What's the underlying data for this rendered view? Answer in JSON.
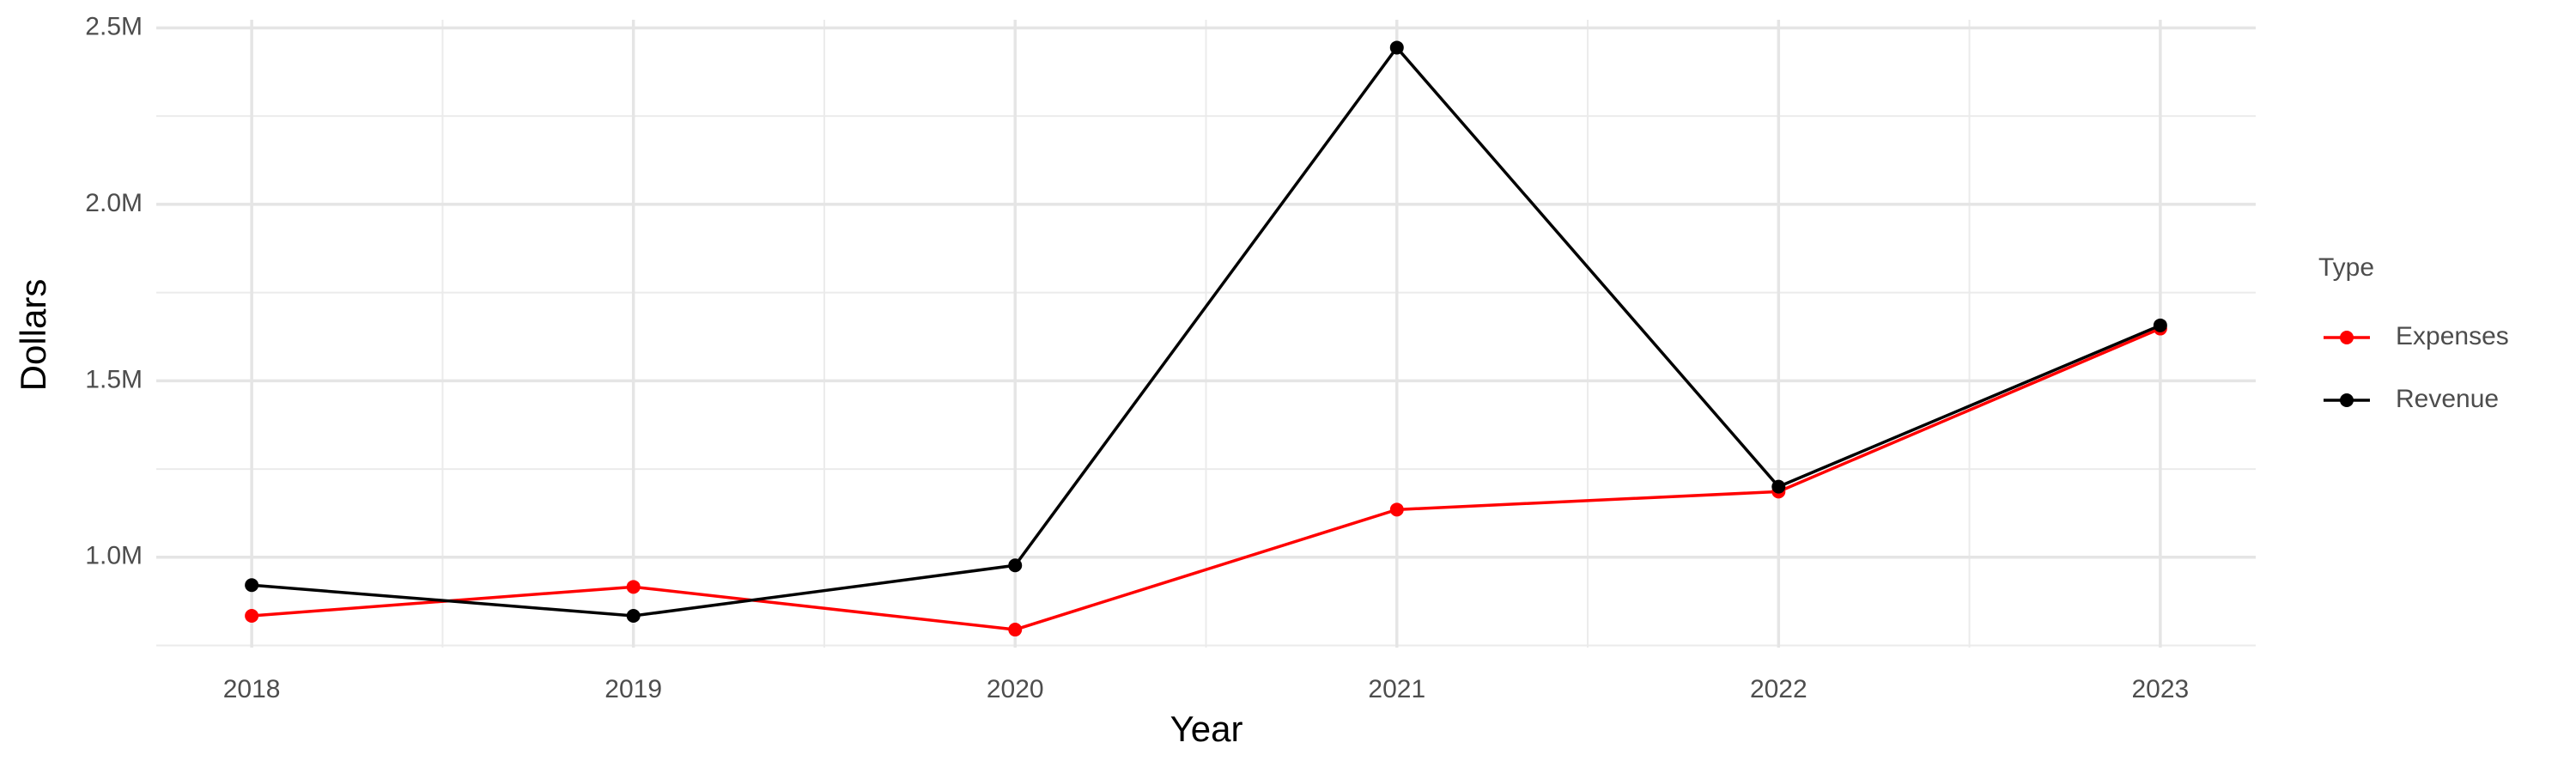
{
  "chart_data": {
    "type": "line",
    "x_label": "Year",
    "y_label": "Dollars",
    "legend_title": "Type",
    "x": [
      2018,
      2019,
      2020,
      2021,
      2022,
      2023
    ],
    "series": [
      {
        "name": "Expenses",
        "color": "#ff0000",
        "values": [
          834000,
          916000,
          795000,
          1135000,
          1186000,
          1648000
        ]
      },
      {
        "name": "Revenue",
        "color": "#000000",
        "values": [
          921000,
          834000,
          977000,
          2444000,
          1200000,
          1657000
        ]
      }
    ],
    "xlim": [
      2017.75,
      2023.25
    ],
    "xticks": [
      2018,
      2019,
      2020,
      2021,
      2022,
      2023
    ],
    "ylim": [
      744000,
      2523000
    ],
    "yticks": [
      {
        "value": 1000000,
        "label": "1.0M"
      },
      {
        "value": 1500000,
        "label": "1.5M"
      },
      {
        "value": 2000000,
        "label": "2.0M"
      },
      {
        "value": 2500000,
        "label": "2.5M"
      }
    ],
    "grid": true,
    "legend_position": "right"
  }
}
